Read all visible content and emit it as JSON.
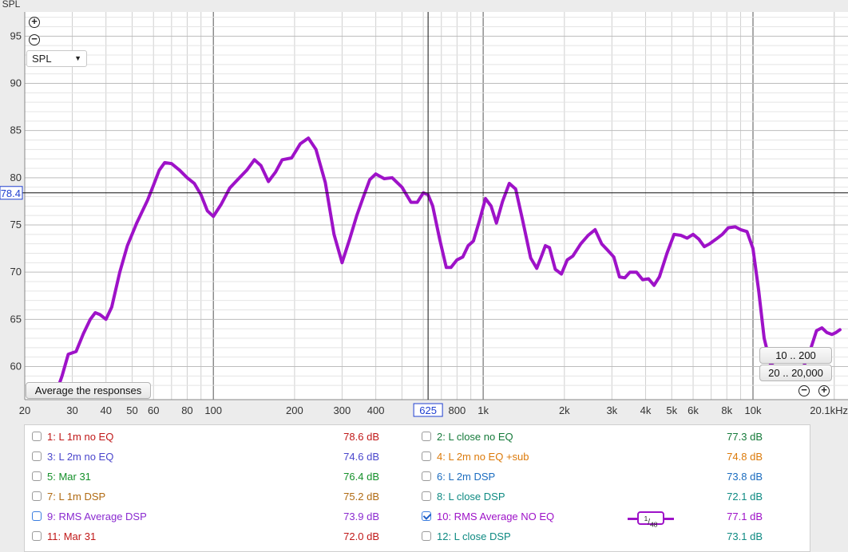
{
  "y_axis_title": "SPL",
  "cursor": {
    "x_value": "625",
    "y_value": "78.4"
  },
  "controls": {
    "zoom_in_icon": "plus-circle-icon",
    "zoom_out_icon": "minus-circle-icon",
    "measurement_select": "SPL",
    "average_button": "Average the responses",
    "range_button_1": "10 .. 200",
    "range_button_2": "20 .. 20,000"
  },
  "chart_data": {
    "type": "line",
    "x_scale": "log",
    "xlim": [
      20,
      21000
    ],
    "ylim": [
      57,
      97
    ],
    "ylabel": "SPL",
    "x_ticks": [
      {
        "v": 20,
        "label": "20"
      },
      {
        "v": 30,
        "label": "30"
      },
      {
        "v": 40,
        "label": "40"
      },
      {
        "v": 50,
        "label": "50"
      },
      {
        "v": 60,
        "label": "60"
      },
      {
        "v": 80,
        "label": "80"
      },
      {
        "v": 100,
        "label": "100"
      },
      {
        "v": 200,
        "label": "200"
      },
      {
        "v": 300,
        "label": "300"
      },
      {
        "v": 400,
        "label": "400"
      },
      {
        "v": 800,
        "label": "800"
      },
      {
        "v": 1000,
        "label": "1k"
      },
      {
        "v": 2000,
        "label": "2k"
      },
      {
        "v": 3000,
        "label": "3k"
      },
      {
        "v": 4000,
        "label": "4k"
      },
      {
        "v": 5000,
        "label": "5k"
      },
      {
        "v": 6000,
        "label": "6k"
      },
      {
        "v": 8000,
        "label": "8k"
      },
      {
        "v": 10000,
        "label": "10k"
      },
      {
        "v": 20100,
        "label": "20.1kHz"
      }
    ],
    "y_ticks": [
      60,
      65,
      70,
      75,
      80,
      85,
      90,
      95
    ],
    "series": [
      {
        "name": "10: RMS Average NO EQ",
        "color": "#9e12c8",
        "points": [
          [
            26,
            57
          ],
          [
            27.5,
            59
          ],
          [
            29,
            61.3
          ],
          [
            31,
            61.6
          ],
          [
            33,
            63.5
          ],
          [
            35,
            65.0
          ],
          [
            36.5,
            65.7
          ],
          [
            38,
            65.5
          ],
          [
            40,
            65.0
          ],
          [
            42,
            66.3
          ],
          [
            45,
            70.0
          ],
          [
            48,
            72.8
          ],
          [
            52,
            75.2
          ],
          [
            57,
            77.6
          ],
          [
            60,
            79.2
          ],
          [
            63,
            80.8
          ],
          [
            66,
            81.6
          ],
          [
            70,
            81.5
          ],
          [
            75,
            80.8
          ],
          [
            80,
            80.0
          ],
          [
            85,
            79.4
          ],
          [
            90,
            78.2
          ],
          [
            95,
            76.5
          ],
          [
            100,
            75.9
          ],
          [
            107,
            77.2
          ],
          [
            115,
            78.9
          ],
          [
            123,
            79.8
          ],
          [
            133,
            80.8
          ],
          [
            142,
            81.9
          ],
          [
            150,
            81.3
          ],
          [
            160,
            79.6
          ],
          [
            170,
            80.6
          ],
          [
            180,
            81.9
          ],
          [
            195,
            82.1
          ],
          [
            210,
            83.6
          ],
          [
            225,
            84.2
          ],
          [
            240,
            83.0
          ],
          [
            260,
            79.5
          ],
          [
            280,
            74.0
          ],
          [
            300,
            71.0
          ],
          [
            320,
            73.5
          ],
          [
            340,
            76.0
          ],
          [
            360,
            78.0
          ],
          [
            380,
            79.8
          ],
          [
            400,
            80.4
          ],
          [
            430,
            79.9
          ],
          [
            460,
            80.0
          ],
          [
            500,
            79.0
          ],
          [
            540,
            77.4
          ],
          [
            570,
            77.4
          ],
          [
            600,
            78.4
          ],
          [
            625,
            78.2
          ],
          [
            650,
            77.0
          ],
          [
            690,
            73.5
          ],
          [
            730,
            70.5
          ],
          [
            760,
            70.5
          ],
          [
            800,
            71.3
          ],
          [
            840,
            71.6
          ],
          [
            880,
            72.8
          ],
          [
            920,
            73.3
          ],
          [
            970,
            75.5
          ],
          [
            1020,
            77.8
          ],
          [
            1070,
            77.0
          ],
          [
            1120,
            75.2
          ],
          [
            1180,
            77.5
          ],
          [
            1250,
            79.4
          ],
          [
            1320,
            78.8
          ],
          [
            1400,
            75.5
          ],
          [
            1500,
            71.5
          ],
          [
            1580,
            70.4
          ],
          [
            1650,
            71.8
          ],
          [
            1700,
            72.8
          ],
          [
            1760,
            72.6
          ],
          [
            1850,
            70.3
          ],
          [
            1950,
            69.8
          ],
          [
            2050,
            71.3
          ],
          [
            2150,
            71.7
          ],
          [
            2300,
            73.0
          ],
          [
            2450,
            73.9
          ],
          [
            2600,
            74.5
          ],
          [
            2750,
            73.0
          ],
          [
            2900,
            72.3
          ],
          [
            3050,
            71.6
          ],
          [
            3200,
            69.5
          ],
          [
            3350,
            69.4
          ],
          [
            3500,
            70.0
          ],
          [
            3700,
            70.0
          ],
          [
            3900,
            69.2
          ],
          [
            4100,
            69.3
          ],
          [
            4300,
            68.6
          ],
          [
            4500,
            69.5
          ],
          [
            4800,
            72.0
          ],
          [
            5100,
            74.0
          ],
          [
            5400,
            73.9
          ],
          [
            5700,
            73.6
          ],
          [
            6000,
            74.0
          ],
          [
            6300,
            73.5
          ],
          [
            6600,
            72.7
          ],
          [
            6900,
            73.0
          ],
          [
            7300,
            73.5
          ],
          [
            7700,
            74.0
          ],
          [
            8100,
            74.7
          ],
          [
            8600,
            74.8
          ],
          [
            9000,
            74.5
          ],
          [
            9500,
            74.3
          ],
          [
            10000,
            72.5
          ],
          [
            10500,
            68.0
          ],
          [
            11000,
            63.0
          ],
          [
            11600,
            60.3
          ],
          [
            12300,
            59.8
          ],
          [
            13200,
            59.3
          ],
          [
            14200,
            59.0
          ],
          [
            15200,
            59.6
          ],
          [
            16200,
            61.5
          ],
          [
            17200,
            63.8
          ],
          [
            18000,
            64.1
          ],
          [
            18800,
            63.6
          ],
          [
            19600,
            63.4
          ],
          [
            20300,
            63.6
          ],
          [
            21000,
            63.9
          ]
        ]
      }
    ]
  },
  "legend": [
    {
      "label": "1: L 1m no EQ",
      "value": "78.6 dB",
      "color": "#c01818",
      "checked": false,
      "col": 0
    },
    {
      "label": "2: L close no EQ",
      "value": "77.3 dB",
      "color": "#157a3a",
      "checked": false,
      "col": 1
    },
    {
      "label": "3: L 2m no EQ",
      "value": "74.6 dB",
      "color": "#4a46cc",
      "checked": false,
      "col": 0
    },
    {
      "label": "4: L 2m no EQ +sub",
      "value": "74.8 dB",
      "color": "#dc7a0a",
      "checked": false,
      "col": 1
    },
    {
      "label": "5: Mar 31",
      "value": "76.4 dB",
      "color": "#15902a",
      "checked": false,
      "col": 0
    },
    {
      "label": "6: L 2m DSP",
      "value": "73.8 dB",
      "color": "#1a6cc0",
      "checked": false,
      "col": 1
    },
    {
      "label": "7: L 1m DSP",
      "value": "75.2 dB",
      "color": "#b06a12",
      "checked": false,
      "col": 0
    },
    {
      "label": "8: L close DSP",
      "value": "72.1 dB",
      "color": "#0e8a82",
      "checked": false,
      "col": 1
    },
    {
      "label": "9: RMS Average DSP",
      "value": "73.9 dB",
      "color": "#8a2ad0",
      "checked": false,
      "col": 0,
      "highlight": true
    },
    {
      "label": "10: RMS Average NO EQ",
      "value": "77.1 dB",
      "color": "#9e12c8",
      "checked": true,
      "col": 1
    },
    {
      "label": "11: Mar 31",
      "value": "72.0 dB",
      "color": "#c01818",
      "checked": false,
      "col": 0
    },
    {
      "label": "12: L close DSP",
      "value": "73.1 dB",
      "color": "#0e8a82",
      "checked": false,
      "col": 1
    }
  ],
  "smoothing": {
    "numerator": "1",
    "denominator": "48"
  }
}
